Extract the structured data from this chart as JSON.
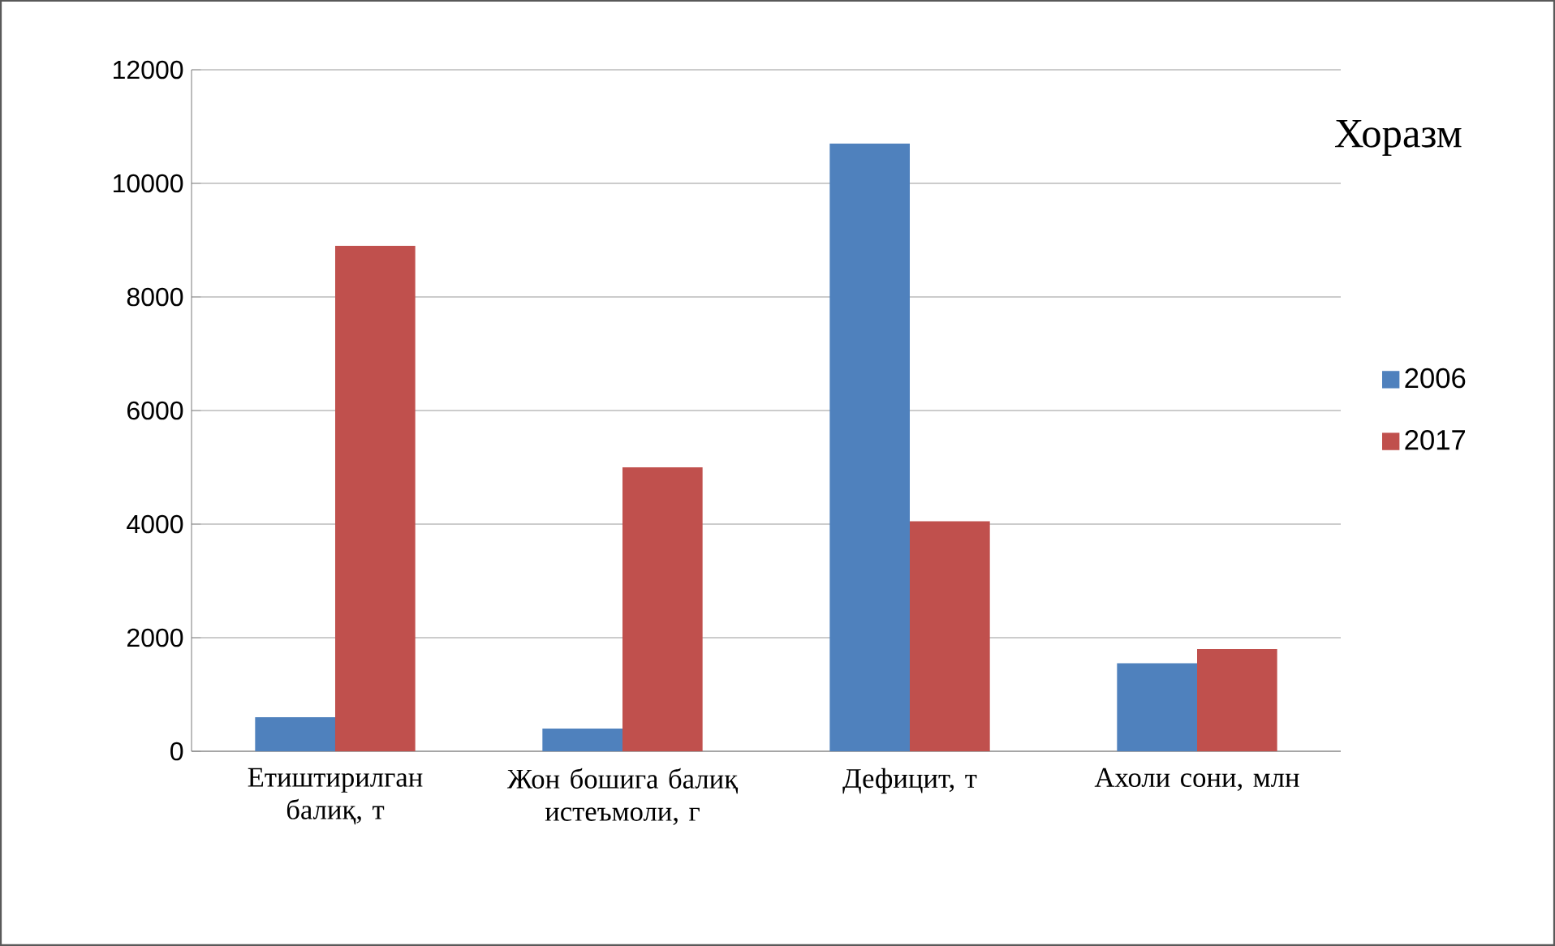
{
  "chart_data": {
    "type": "bar",
    "title": "Хоразм",
    "categories": [
      "Етиштирилган балиқ, т",
      "Жон бошига балиқ истеъмоли, г",
      "Дефицит, т",
      "Ахоли сони, млн"
    ],
    "series": [
      {
        "name": "2006",
        "color": "#4f81bd",
        "values": [
          600,
          400,
          10700,
          1550
        ]
      },
      {
        "name": "2017",
        "color": "#c0504d",
        "values": [
          8900,
          5000,
          4050,
          1800
        ]
      }
    ],
    "ylim": [
      0,
      12000
    ],
    "yticks": [
      0,
      2000,
      4000,
      6000,
      8000,
      10000,
      12000
    ],
    "grid": "y",
    "legend": "right"
  }
}
